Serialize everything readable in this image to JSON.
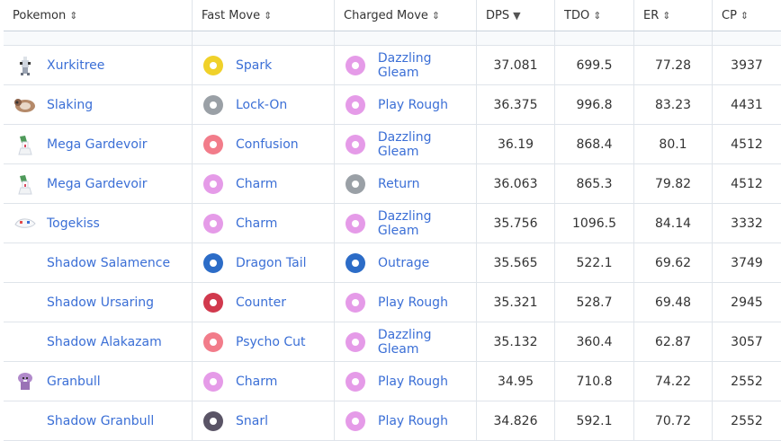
{
  "columns": [
    {
      "label": "Pokemon",
      "sort": "⇕"
    },
    {
      "label": "Fast Move",
      "sort": "⇕"
    },
    {
      "label": "Charged Move",
      "sort": "⇕"
    },
    {
      "label": "DPS",
      "sort": "▼"
    },
    {
      "label": "TDO",
      "sort": "⇕"
    },
    {
      "label": "ER",
      "sort": "⇕"
    },
    {
      "label": "CP",
      "sort": "⇕"
    }
  ],
  "type_colors": {
    "electric": "#f0d12a",
    "normal": "#9aa0a6",
    "psychic": "#f27c8a",
    "fairy": "#e59be8",
    "dragon": "#2c6cc7",
    "fighting": "#d1394d",
    "dark": "#5a5466"
  },
  "rows": [
    {
      "pokemon": "Xurkitree",
      "sprite": "xurkitree-sprite",
      "fast": "Spark",
      "fast_type": "electric",
      "charged": "Dazzling Gleam",
      "charged_type": "fairy",
      "dps": "37.081",
      "tdo": "699.5",
      "er": "77.28",
      "cp": "3937"
    },
    {
      "pokemon": "Slaking",
      "sprite": "slaking-sprite",
      "fast": "Lock-On",
      "fast_type": "normal",
      "charged": "Play Rough",
      "charged_type": "fairy",
      "dps": "36.375",
      "tdo": "996.8",
      "er": "83.23",
      "cp": "4431"
    },
    {
      "pokemon": "Mega Gardevoir",
      "sprite": "gardevoir-sprite",
      "fast": "Confusion",
      "fast_type": "psychic",
      "charged": "Dazzling Gleam",
      "charged_type": "fairy",
      "dps": "36.19",
      "tdo": "868.4",
      "er": "80.1",
      "cp": "4512"
    },
    {
      "pokemon": "Mega Gardevoir",
      "sprite": "gardevoir-sprite",
      "fast": "Charm",
      "fast_type": "fairy",
      "charged": "Return",
      "charged_type": "normal",
      "dps": "36.063",
      "tdo": "865.3",
      "er": "79.82",
      "cp": "4512"
    },
    {
      "pokemon": "Togekiss",
      "sprite": "togekiss-sprite",
      "fast": "Charm",
      "fast_type": "fairy",
      "charged": "Dazzling Gleam",
      "charged_type": "fairy",
      "dps": "35.756",
      "tdo": "1096.5",
      "er": "84.14",
      "cp": "3332"
    },
    {
      "pokemon": "Shadow Salamence",
      "sprite": "",
      "fast": "Dragon Tail",
      "fast_type": "dragon",
      "charged": "Outrage",
      "charged_type": "dragon",
      "dps": "35.565",
      "tdo": "522.1",
      "er": "69.62",
      "cp": "3749"
    },
    {
      "pokemon": "Shadow Ursaring",
      "sprite": "",
      "fast": "Counter",
      "fast_type": "fighting",
      "charged": "Play Rough",
      "charged_type": "fairy",
      "dps": "35.321",
      "tdo": "528.7",
      "er": "69.48",
      "cp": "2945"
    },
    {
      "pokemon": "Shadow Alakazam",
      "sprite": "",
      "fast": "Psycho Cut",
      "fast_type": "psychic",
      "charged": "Dazzling Gleam",
      "charged_type": "fairy",
      "dps": "35.132",
      "tdo": "360.4",
      "er": "62.87",
      "cp": "3057"
    },
    {
      "pokemon": "Granbull",
      "sprite": "granbull-sprite",
      "fast": "Charm",
      "fast_type": "fairy",
      "charged": "Play Rough",
      "charged_type": "fairy",
      "dps": "34.95",
      "tdo": "710.8",
      "er": "74.22",
      "cp": "2552"
    },
    {
      "pokemon": "Shadow Granbull",
      "sprite": "",
      "fast": "Snarl",
      "fast_type": "dark",
      "charged": "Play Rough",
      "charged_type": "fairy",
      "dps": "34.826",
      "tdo": "592.1",
      "er": "70.72",
      "cp": "2552"
    }
  ]
}
